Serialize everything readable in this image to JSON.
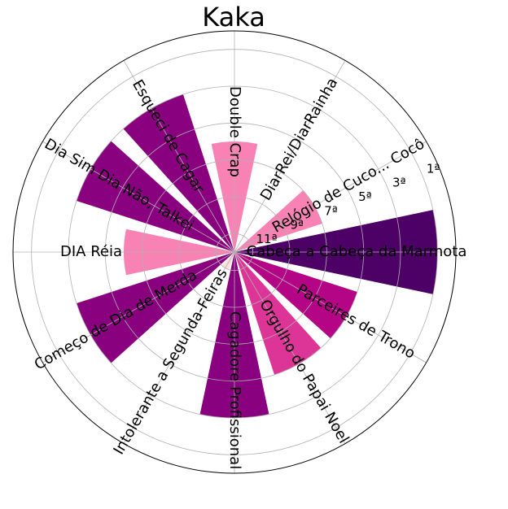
{
  "chart_data": {
    "type": "polar-bar",
    "title": "Kaka",
    "radial_ticks": [
      "1ª",
      "3ª",
      "5ª",
      "7ª",
      "9ª",
      "11ª"
    ],
    "categories": [
      "Cabeça a Cabeça da Marmota",
      "Relógio de Cuco... Cocô",
      "DiarRei/DiarRainha",
      "Double Crap",
      "Esqueci de Cagar",
      "Dia Sim Dia Não, Talkei",
      "DIA Réia",
      "Começo de Dia de Merda",
      "Intolerante a Segunda-Feiras",
      "Cagadore Profissional",
      "Orgulho do Papai Noel",
      "Parceires de Trono"
    ],
    "values": [
      1,
      7,
      12,
      6,
      3,
      3,
      6,
      3,
      11,
      3,
      5,
      5
    ],
    "colors": [
      "#4d0066",
      "#f882b4",
      "#fde0dd",
      "#f882b4",
      "#8a0180",
      "#8a0180",
      "#f882b4",
      "#8a0180",
      "#fde0dd",
      "#8a0180",
      "#dd3497",
      "#b40586"
    ],
    "rmin": 12,
    "rmax": 0,
    "grid": true
  }
}
